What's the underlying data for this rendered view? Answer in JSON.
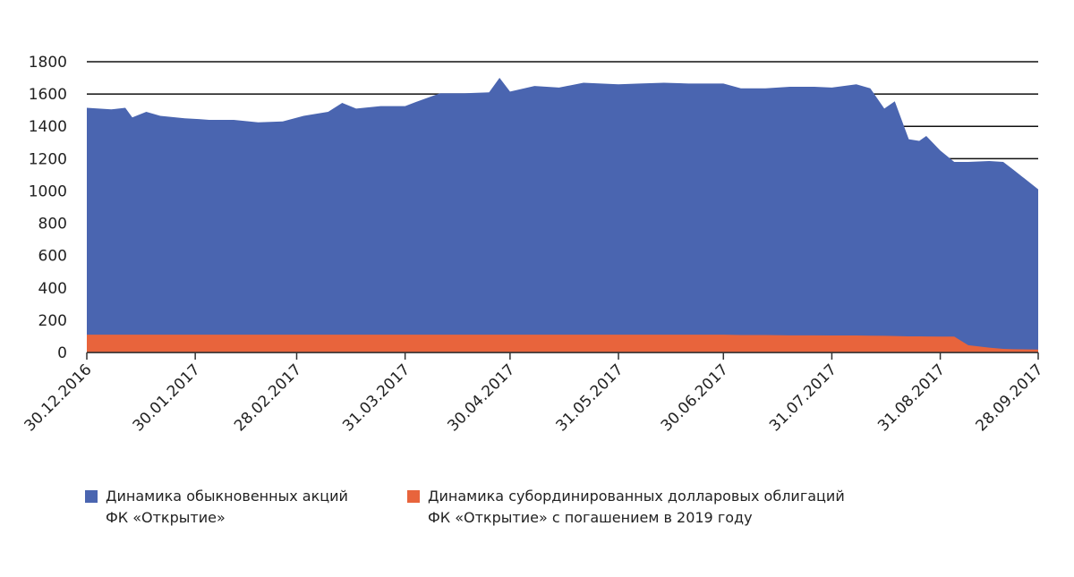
{
  "chart_data": {
    "type": "area",
    "x": [
      "30.12.2016",
      "06.01.2017",
      "10.01.2017",
      "12.01.2017",
      "16.01.2017",
      "20.01.2017",
      "27.01.2017",
      "31.01.2017",
      "03.02.2017",
      "10.02.2017",
      "17.02.2017",
      "24.02.2017",
      "02.03.2017",
      "09.03.2017",
      "13.03.2017",
      "17.03.2017",
      "24.03.2017",
      "31.03.2017",
      "03.04.2017",
      "10.04.2017",
      "17.04.2017",
      "24.04.2017",
      "27.04.2017",
      "30.04.2017",
      "07.05.2017",
      "14.05.2017",
      "21.05.2017",
      "26.05.2017",
      "31.05.2017",
      "06.06.2017",
      "13.06.2017",
      "20.06.2017",
      "27.06.2017",
      "30.06.2017",
      "05.07.2017",
      "12.07.2017",
      "19.07.2017",
      "26.07.2017",
      "31.07.2017",
      "07.08.2017",
      "11.08.2017",
      "15.08.2017",
      "18.08.2017",
      "22.08.2017",
      "25.08.2017",
      "27.08.2017",
      "31.08.2017",
      "04.09.2017",
      "08.09.2017",
      "14.09.2017",
      "18.09.2017",
      "21.09.2017",
      "28.09.2017"
    ],
    "series": [
      {
        "name": "Динамика обыкновенных акций ФК «Открытие»",
        "color": "#4a65b0",
        "values": [
          1515,
          1505,
          1515,
          1455,
          1490,
          1465,
          1450,
          1445,
          1440,
          1440,
          1425,
          1430,
          1465,
          1490,
          1545,
          1510,
          1525,
          1525,
          1550,
          1605,
          1605,
          1610,
          1700,
          1615,
          1650,
          1640,
          1670,
          1665,
          1660,
          1665,
          1670,
          1665,
          1665,
          1665,
          1635,
          1635,
          1645,
          1645,
          1640,
          1660,
          1635,
          1510,
          1555,
          1320,
          1310,
          1340,
          1250,
          1180,
          1180,
          1185,
          1180,
          1130,
          1010
        ]
      },
      {
        "name": "Динамика субординированных долларовых облигаций ФК «Открытие» с погашением в 2019 году",
        "color": "#e8643c",
        "values": [
          110,
          110,
          110,
          110,
          110,
          110,
          110,
          110,
          110,
          110,
          110,
          110,
          110,
          110,
          110,
          110,
          110,
          110,
          110,
          110,
          110,
          110,
          110,
          110,
          110,
          110,
          110,
          110,
          110,
          110,
          110,
          110,
          110,
          110,
          108,
          108,
          106,
          106,
          105,
          105,
          104,
          103,
          102,
          100,
          100,
          99,
          98,
          98,
          45,
          30,
          22,
          20,
          18
        ]
      }
    ],
    "xlim": [
      "30.12.2016",
      "28.09.2017"
    ],
    "xticks": [
      "30.12.2016",
      "30.01.2017",
      "28.02.2017",
      "31.03.2017",
      "30.04.2017",
      "31.05.2017",
      "30.06.2017",
      "31.07.2017",
      "31.08.2017",
      "28.09.2017"
    ],
    "ylim": [
      0,
      1800
    ],
    "yticks": [
      0,
      200,
      400,
      600,
      800,
      1000,
      1200,
      1400,
      1600,
      1800
    ],
    "grid": true
  }
}
